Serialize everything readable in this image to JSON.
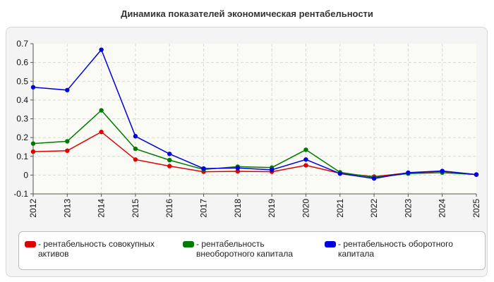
{
  "chart_data": {
    "type": "line",
    "title": "Динамика показателей экономическая рентабельности",
    "xlabel": "",
    "ylabel": "",
    "x": [
      "2012",
      "2013",
      "2014",
      "2015",
      "2016",
      "2017",
      "2018",
      "2019",
      "2020",
      "2021",
      "2022",
      "2023",
      "2024",
      "2025"
    ],
    "ylim": [
      -0.1,
      0.7
    ],
    "yticks": [
      "-0.1",
      "0",
      "0.1",
      "0.2",
      "0.3",
      "0.4",
      "0.5",
      "0.6",
      "0.7"
    ],
    "grid": true,
    "legend_position": "bottom",
    "series": [
      {
        "name": "рентабельность совокупных активов",
        "color": "#e00000",
        "values": [
          0.125,
          0.13,
          0.23,
          0.083,
          0.048,
          0.018,
          0.02,
          0.018,
          0.052,
          0.01,
          -0.008,
          0.012,
          0.02,
          0.003
        ]
      },
      {
        "name": "рентабельность внеоборотного капитала",
        "color": "#007a00",
        "values": [
          0.168,
          0.18,
          0.345,
          0.14,
          0.08,
          0.03,
          0.045,
          0.04,
          0.135,
          0.015,
          -0.012,
          0.008,
          0.013,
          0.003
        ]
      },
      {
        "name": "рентабельность оборотного капитала",
        "color": "#0000e0",
        "values": [
          0.468,
          0.453,
          0.668,
          0.207,
          0.113,
          0.035,
          0.038,
          0.028,
          0.083,
          0.008,
          -0.018,
          0.013,
          0.022,
          0.003
        ]
      }
    ]
  }
}
